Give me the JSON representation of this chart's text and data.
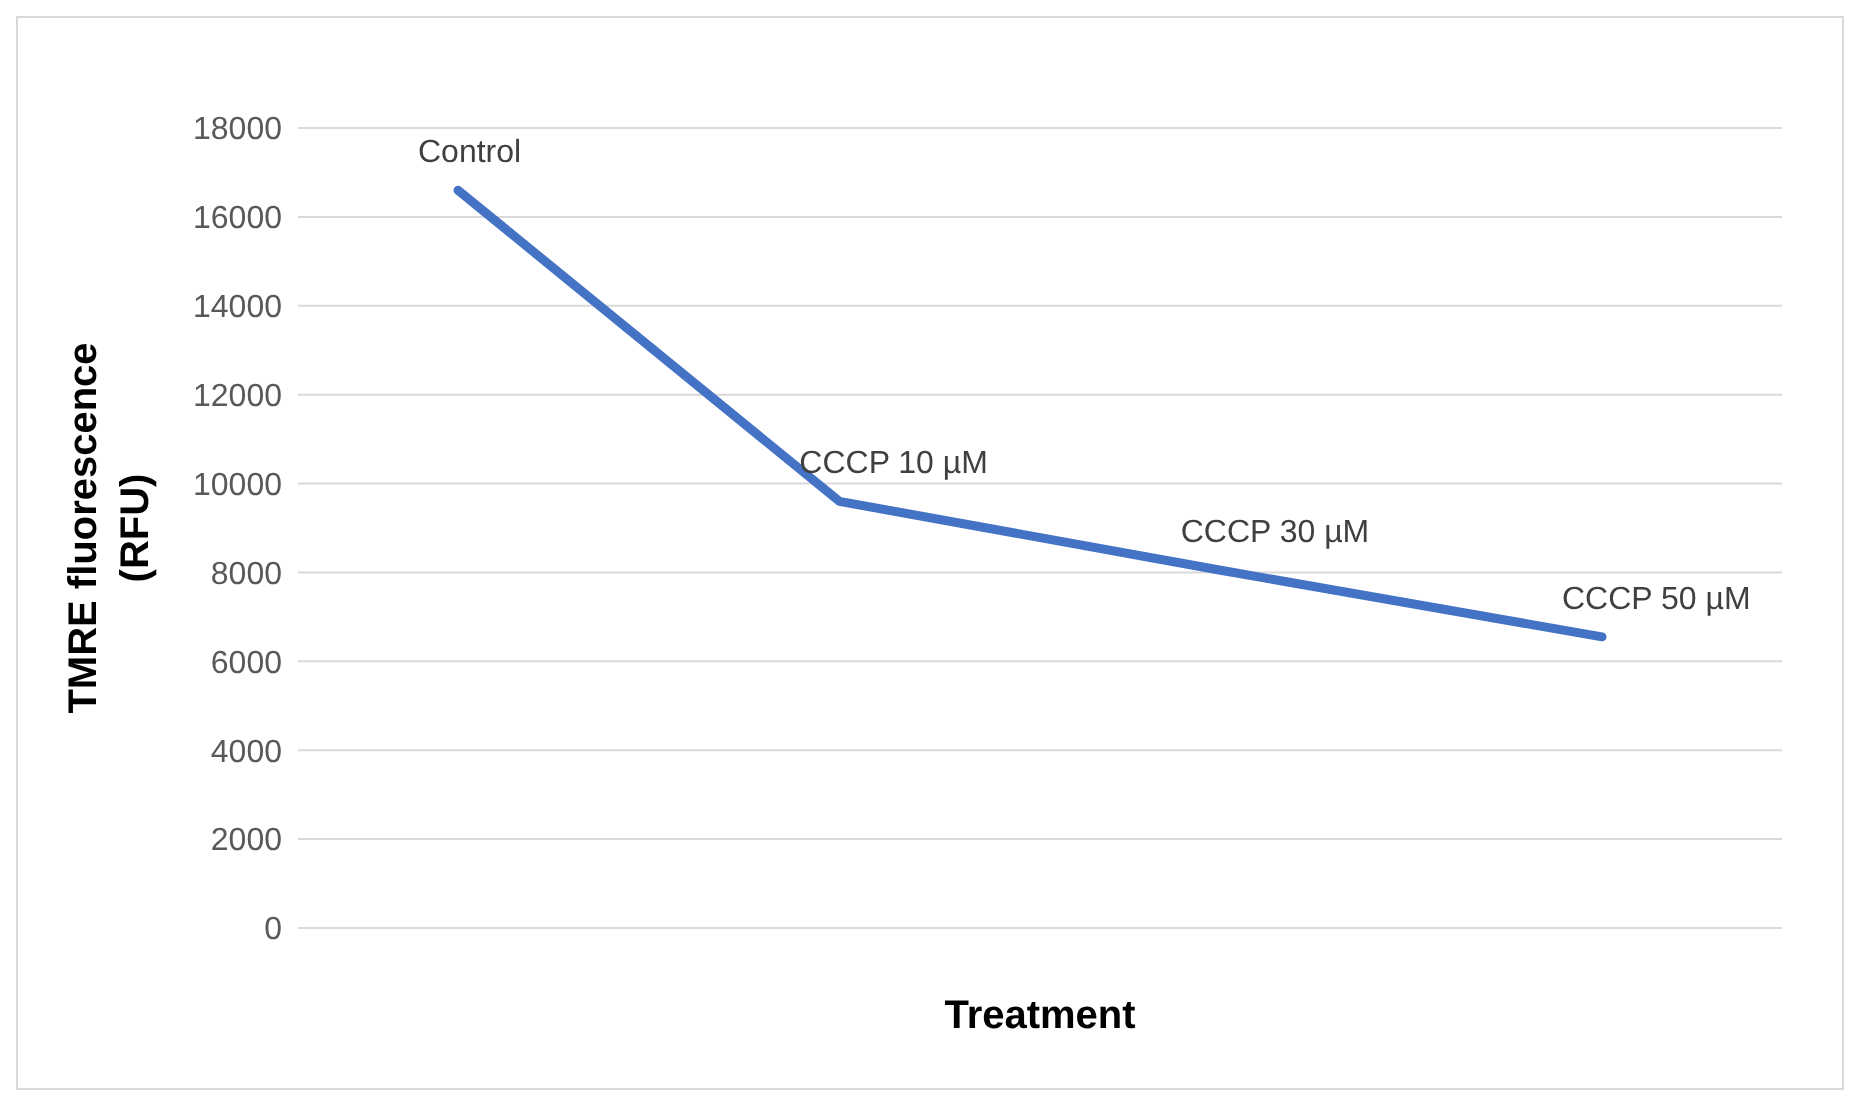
{
  "chart_data": {
    "type": "line",
    "xlabel": "Treatment",
    "ylabel": "TMRE fluorescence (RFU)",
    "categories": [
      "Control",
      "CCCP 10 µM",
      "CCCP 30 µM",
      "CCCP 50 µM"
    ],
    "series": [
      {
        "color": "#4472c4",
        "values": [
          16600,
          9600,
          8050,
          6550
        ]
      }
    ],
    "ylim": [
      0,
      18000
    ],
    "yticks": [
      0,
      2000,
      4000,
      6000,
      8000,
      10000,
      12000,
      14000,
      16000,
      18000
    ],
    "grid": "y",
    "marker": "none",
    "line_style": "solid",
    "tick_labels": "y"
  }
}
